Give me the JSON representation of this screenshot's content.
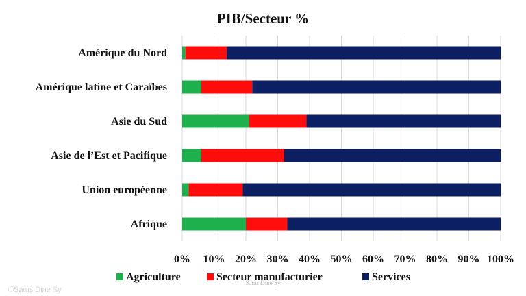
{
  "chart_data": {
    "type": "bar",
    "orientation": "horizontal",
    "stacked": true,
    "title": "PIB/Secteur %",
    "categories": [
      "Amérique du Nord",
      "Amérique latine et Caraïbes",
      "Asie du Sud",
      "Asie de l’Est et Pacifique",
      "Union européenne",
      "Afrique"
    ],
    "series": [
      {
        "name": "Agriculture",
        "color": "#1fb04e",
        "values": [
          1,
          6,
          21,
          6,
          2,
          20
        ]
      },
      {
        "name": "Secteur manufacturier",
        "color": "#ff0d0d",
        "values": [
          13,
          16,
          18,
          26,
          17,
          13
        ]
      },
      {
        "name": "Services",
        "color": "#0d1f63",
        "values": [
          86,
          78,
          61,
          68,
          81,
          67
        ]
      }
    ],
    "xlim": [
      0,
      100
    ],
    "xticks": [
      "0%",
      "10%",
      "20%",
      "30%",
      "40%",
      "50%",
      "60%",
      "70%",
      "80%",
      "90%",
      "100%"
    ],
    "grid": true,
    "legend_position": "bottom"
  },
  "watermarks": {
    "center": "Sams Dine Sy",
    "left": "©Sams Dine Sy"
  }
}
